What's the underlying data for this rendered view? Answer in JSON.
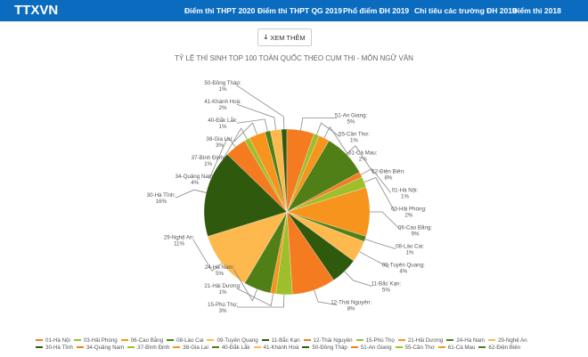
{
  "header": {
    "logo": "TTXVN",
    "menu": [
      "Điểm thi THPT 2020",
      "Điểm thi THPT QG 2019",
      "Phổ điểm ĐH 2019",
      "Chỉ tiêu các trường ĐH 2019",
      "Điểm thi 2018"
    ]
  },
  "more_button": {
    "icon": "arrow-down-icon",
    "label": "XEM THÊM"
  },
  "chart_data": {
    "type": "pie",
    "title": "TỶ LỆ THÍ SINH TOP 100 TOÀN QUỐC THEO CỤM THI - MÔN  NGỮ VĂN",
    "categories": [
      "01-Hà Nội",
      "03-Hải Phòng",
      "06-Cao Bằng",
      "08-Lào Cai",
      "09-Tuyên Quang",
      "11-Bắc Kạn",
      "12-Thái Nguyên",
      "15-Phú Thọ",
      "21-Hải Dương",
      "24-Hà Nam",
      "29-Nghệ An",
      "30-Hà Tĩnh",
      "34-Quảng Nam",
      "37-Bình Định",
      "38-Gia Lai",
      "40-Đắk Lắk",
      "41-Khánh Hoà",
      "50-Đồng Tháp",
      "51-An Giang",
      "55-Cần Thơ",
      "61-Cà Mau",
      "62-Điện Biên"
    ],
    "values": [
      1,
      2,
      9,
      1,
      4,
      5,
      8,
      3,
      1,
      5,
      11,
      16,
      4,
      1,
      3,
      1,
      2,
      1,
      5,
      1,
      2,
      8
    ],
    "unit": "%",
    "colors": [
      "#f47b20",
      "#9cbf2b",
      "#f7941d",
      "#4f7f16",
      "#fdb94e",
      "#2f5a0e"
    ],
    "legend": "bottom"
  }
}
